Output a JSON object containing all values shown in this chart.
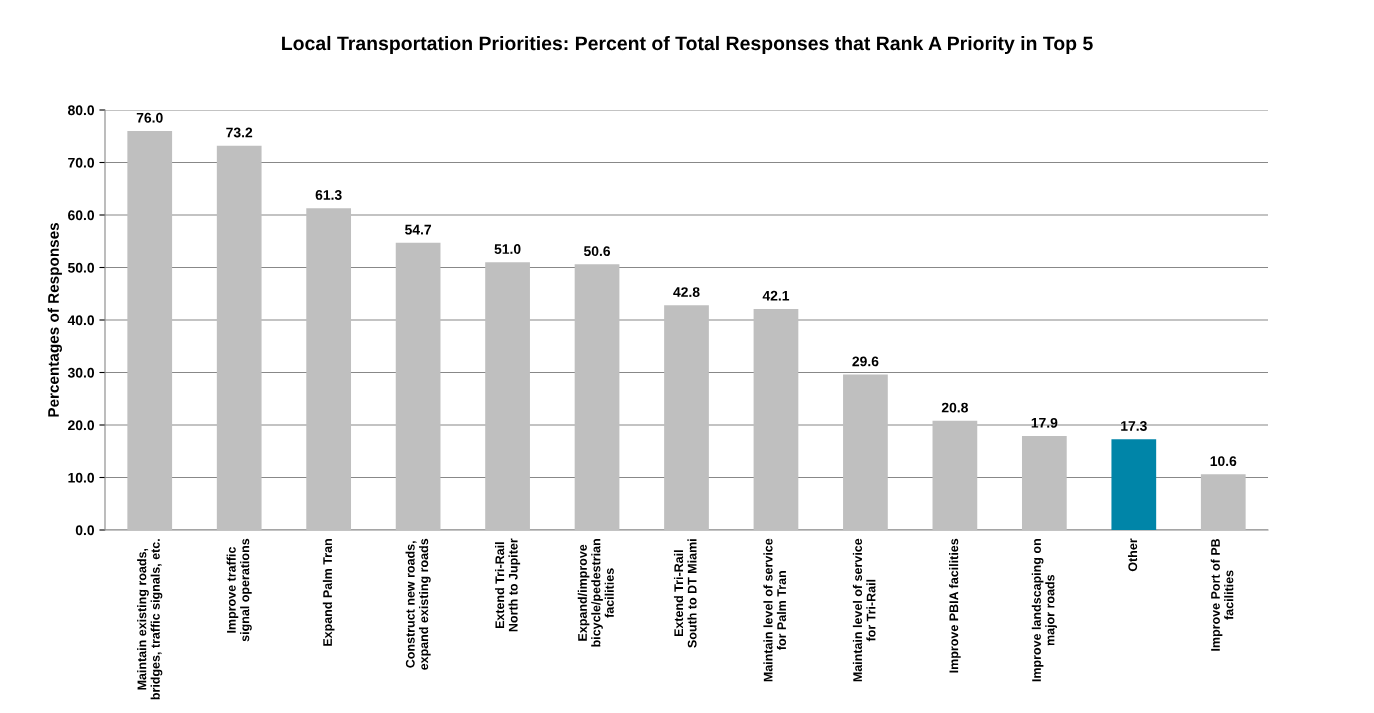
{
  "chart_data": {
    "type": "bar",
    "title": "Local Transportation Priorities: Percent of Total Responses that Rank A Priority in Top 5",
    "ylabel": "Percentages of Responses",
    "categories": [
      "Maintain existing roads,\nbridges, traffic signals, etc.",
      "Improve traffic\nsignal operations",
      "Expand Palm Tran",
      "Construct new roads,\nexpand existing roads",
      "Extend Tri-Rail\nNorth to Jupiter",
      "Expand/improve\nbicycle/pedestrian\nfacilities",
      "Extend Tri-Rail\nSouth to DT Miami",
      "Maintain level of service\nfor Palm Tran",
      "Maintain level of service\nfor Tri-Rail",
      "Improve PBIA facilities",
      "Improve landscaping on\nmajor roads",
      "Other",
      "Improve Port of PB\nfacilities"
    ],
    "values": [
      76.0,
      73.2,
      61.3,
      54.7,
      51.0,
      50.6,
      42.8,
      42.1,
      29.6,
      20.8,
      17.9,
      17.3,
      10.6
    ],
    "colors": [
      "#bfbfbf",
      "#bfbfbf",
      "#bfbfbf",
      "#bfbfbf",
      "#bfbfbf",
      "#bfbfbf",
      "#bfbfbf",
      "#bfbfbf",
      "#bfbfbf",
      "#bfbfbf",
      "#bfbfbf",
      "#0085a8",
      "#bfbfbf"
    ],
    "ylim": [
      0,
      80
    ],
    "yticks": [
      {
        "value": 0,
        "label": "0.0"
      },
      {
        "value": 10,
        "label": "10.0"
      },
      {
        "value": 20,
        "label": "20.0"
      },
      {
        "value": 30,
        "label": "30.0"
      },
      {
        "value": 40,
        "label": "40.0"
      },
      {
        "value": 50,
        "label": "50.0"
      },
      {
        "value": 60,
        "label": "60.0"
      },
      {
        "value": 70,
        "label": "70.0"
      },
      {
        "value": 80,
        "label": "80.0"
      }
    ],
    "value_labels": [
      "76.0",
      "73.2",
      "61.3",
      "54.7",
      "51.0",
      "50.6",
      "42.8",
      "42.1",
      "29.6",
      "20.8",
      "17.9",
      "17.3",
      "10.6"
    ],
    "grid": "y"
  }
}
